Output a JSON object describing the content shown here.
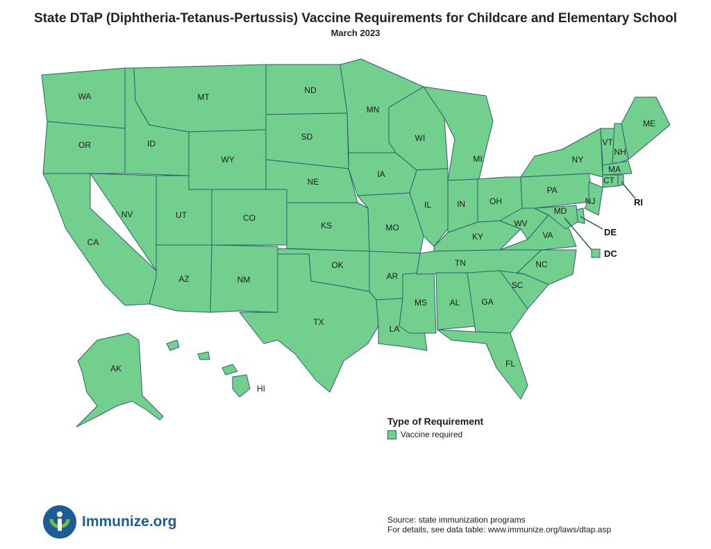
{
  "title": "State DTaP (Diphtheria-Tetanus-Pertussis) Vaccine Requirements for Childcare and Elementary School",
  "subtitle": "March 2023",
  "colors": {
    "vaccine_required": "#72cf8d",
    "border": "#2c5f6c"
  },
  "states": [
    {
      "abbr": "WA",
      "category": "Vaccine required"
    },
    {
      "abbr": "OR",
      "category": "Vaccine required"
    },
    {
      "abbr": "CA",
      "category": "Vaccine required"
    },
    {
      "abbr": "NV",
      "category": "Vaccine required"
    },
    {
      "abbr": "ID",
      "category": "Vaccine required"
    },
    {
      "abbr": "MT",
      "category": "Vaccine required"
    },
    {
      "abbr": "WY",
      "category": "Vaccine required"
    },
    {
      "abbr": "UT",
      "category": "Vaccine required"
    },
    {
      "abbr": "AZ",
      "category": "Vaccine required"
    },
    {
      "abbr": "CO",
      "category": "Vaccine required"
    },
    {
      "abbr": "NM",
      "category": "Vaccine required"
    },
    {
      "abbr": "ND",
      "category": "Vaccine required"
    },
    {
      "abbr": "SD",
      "category": "Vaccine required"
    },
    {
      "abbr": "NE",
      "category": "Vaccine required"
    },
    {
      "abbr": "KS",
      "category": "Vaccine required"
    },
    {
      "abbr": "OK",
      "category": "Vaccine required"
    },
    {
      "abbr": "TX",
      "category": "Vaccine required"
    },
    {
      "abbr": "MN",
      "category": "Vaccine required"
    },
    {
      "abbr": "IA",
      "category": "Vaccine required"
    },
    {
      "abbr": "MO",
      "category": "Vaccine required"
    },
    {
      "abbr": "AR",
      "category": "Vaccine required"
    },
    {
      "abbr": "LA",
      "category": "Vaccine required"
    },
    {
      "abbr": "WI",
      "category": "Vaccine required"
    },
    {
      "abbr": "IL",
      "category": "Vaccine required"
    },
    {
      "abbr": "MS",
      "category": "Vaccine required"
    },
    {
      "abbr": "MI",
      "category": "Vaccine required"
    },
    {
      "abbr": "IN",
      "category": "Vaccine required"
    },
    {
      "abbr": "KY",
      "category": "Vaccine required"
    },
    {
      "abbr": "TN",
      "category": "Vaccine required"
    },
    {
      "abbr": "AL",
      "category": "Vaccine required"
    },
    {
      "abbr": "GA",
      "category": "Vaccine required"
    },
    {
      "abbr": "FL",
      "category": "Vaccine required"
    },
    {
      "abbr": "OH",
      "category": "Vaccine required"
    },
    {
      "abbr": "WV",
      "category": "Vaccine required"
    },
    {
      "abbr": "VA",
      "category": "Vaccine required"
    },
    {
      "abbr": "NC",
      "category": "Vaccine required"
    },
    {
      "abbr": "SC",
      "category": "Vaccine required"
    },
    {
      "abbr": "PA",
      "category": "Vaccine required"
    },
    {
      "abbr": "NY",
      "category": "Vaccine required"
    },
    {
      "abbr": "VT",
      "category": "Vaccine required"
    },
    {
      "abbr": "NH",
      "category": "Vaccine required"
    },
    {
      "abbr": "ME",
      "category": "Vaccine required"
    },
    {
      "abbr": "MA",
      "category": "Vaccine required"
    },
    {
      "abbr": "CT",
      "category": "Vaccine required"
    },
    {
      "abbr": "RI",
      "category": "Vaccine required"
    },
    {
      "abbr": "NJ",
      "category": "Vaccine required"
    },
    {
      "abbr": "DE",
      "category": "Vaccine required"
    },
    {
      "abbr": "MD",
      "category": "Vaccine required"
    },
    {
      "abbr": "DC",
      "category": "Vaccine required"
    },
    {
      "abbr": "AK",
      "category": "Vaccine required"
    },
    {
      "abbr": "HI",
      "category": "Vaccine required"
    }
  ],
  "legend": {
    "title": "Type of Requirement",
    "items": [
      "Vaccine required"
    ]
  },
  "logo": {
    "text": "Immunize.org"
  },
  "source": {
    "line1": "Source: state immunization programs",
    "line2": "For details, see data table: www.immunize.org/laws/dtap.asp"
  }
}
